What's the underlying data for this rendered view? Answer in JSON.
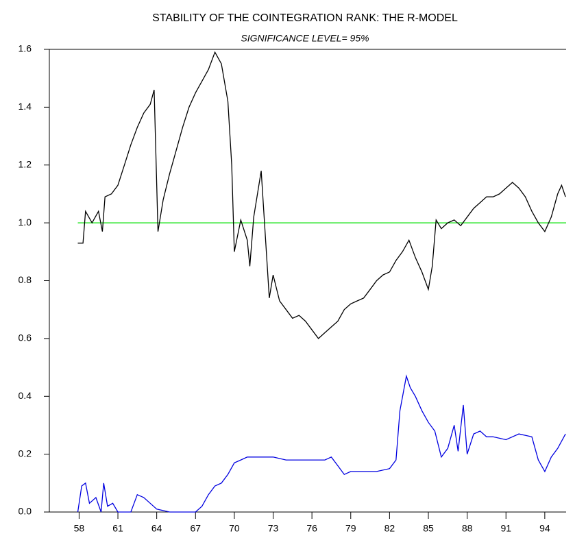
{
  "chart_data": {
    "type": "line",
    "title": "STABILITY OF THE COINTEGRATION RANK: THE R-MODEL",
    "subtitle": "SIGNIFICANCE LEVEL=  95%",
    "xlim": [
      55.7,
      95.65
    ],
    "xticks": [
      58,
      61,
      64,
      67,
      70,
      73,
      76,
      79,
      82,
      85,
      88,
      91,
      94
    ],
    "ylim": [
      0,
      1.6
    ],
    "yticks": [
      {
        "value": 0,
        "label": "0.0"
      },
      0.2,
      0.4,
      0.6,
      0.8,
      {
        "value": 1,
        "label": "1.0"
      },
      1.2,
      1.4,
      1.6
    ],
    "reference_line": {
      "value": 1,
      "color": "#00e000"
    },
    "series": [
      {
        "color": "#000000",
        "x": [
          57.9,
          58.3,
          58.5,
          59,
          59.5,
          59.8,
          60,
          60.5,
          61,
          61.5,
          62,
          62.5,
          63,
          63.5,
          63.8,
          64.1,
          64.5,
          65,
          65.5,
          66,
          66.5,
          67,
          67.5,
          68,
          68.5,
          69,
          69.5,
          69.8,
          70,
          70.5,
          71,
          71.2,
          71.5,
          72.08,
          72.7,
          73,
          73.5,
          74,
          74.5,
          75,
          75.5,
          76,
          76.5,
          77,
          77.5,
          78,
          78.5,
          79,
          79.5,
          80,
          80.5,
          81,
          81.5,
          82,
          82.5,
          83,
          83.5,
          84,
          84.5,
          85,
          85.3,
          85.6,
          86,
          86.5,
          87,
          87.5,
          88,
          88.5,
          89,
          89.5,
          90,
          90.5,
          91,
          91.5,
          92,
          92.5,
          93,
          93.5,
          94,
          94.5,
          95,
          95.3,
          95.6
        ],
        "values": [
          0.93,
          0.93,
          1.04,
          1.0,
          1.04,
          0.97,
          1.09,
          1.1,
          1.13,
          1.2,
          1.27,
          1.33,
          1.38,
          1.41,
          1.46,
          0.97,
          1.08,
          1.17,
          1.25,
          1.33,
          1.4,
          1.45,
          1.49,
          1.53,
          1.59,
          1.55,
          1.42,
          1.2,
          0.9,
          1.01,
          0.94,
          0.85,
          1.02,
          1.18,
          0.74,
          0.82,
          0.73,
          0.7,
          0.67,
          0.68,
          0.66,
          0.63,
          0.6,
          0.62,
          0.64,
          0.66,
          0.7,
          0.72,
          0.73,
          0.74,
          0.77,
          0.8,
          0.82,
          0.83,
          0.87,
          0.9,
          0.94,
          0.88,
          0.83,
          0.77,
          0.85,
          1.01,
          0.98,
          1.0,
          1.01,
          0.99,
          1.02,
          1.05,
          1.07,
          1.09,
          1.09,
          1.1,
          1.12,
          1.14,
          1.12,
          1.09,
          1.04,
          1.0,
          0.97,
          1.02,
          1.1,
          1.13,
          1.09
        ]
      },
      {
        "color": "#0000e0",
        "x": [
          57.9,
          58.2,
          58.5,
          58.8,
          59.3,
          59.7,
          59.9,
          60.2,
          60.6,
          61,
          62,
          62.5,
          63,
          63.5,
          64,
          65,
          66,
          67,
          67.5,
          68,
          68.5,
          69,
          69.5,
          70,
          70.5,
          71,
          72,
          73,
          74,
          75,
          76,
          77,
          77.5,
          78,
          78.5,
          79,
          80,
          81,
          82,
          82.5,
          82.8,
          83.3,
          83.6,
          84,
          84.5,
          85,
          85.5,
          86,
          86.5,
          87,
          87.3,
          87.7,
          88,
          88.5,
          89,
          89.5,
          90,
          91,
          92,
          93,
          93.5,
          94,
          94.5,
          95,
          95.6
        ],
        "values": [
          0.0,
          0.09,
          0.1,
          0.03,
          0.05,
          0.0,
          0.1,
          0.02,
          0.03,
          0.0,
          0.0,
          0.06,
          0.05,
          0.03,
          0.01,
          0.0,
          0.0,
          0.0,
          0.02,
          0.06,
          0.09,
          0.1,
          0.13,
          0.17,
          0.18,
          0.19,
          0.19,
          0.19,
          0.18,
          0.18,
          0.18,
          0.18,
          0.19,
          0.16,
          0.13,
          0.14,
          0.14,
          0.14,
          0.15,
          0.18,
          0.35,
          0.47,
          0.43,
          0.4,
          0.35,
          0.31,
          0.28,
          0.19,
          0.22,
          0.3,
          0.21,
          0.37,
          0.2,
          0.27,
          0.28,
          0.26,
          0.26,
          0.25,
          0.27,
          0.26,
          0.18,
          0.14,
          0.19,
          0.22,
          0.27
        ]
      }
    ]
  }
}
